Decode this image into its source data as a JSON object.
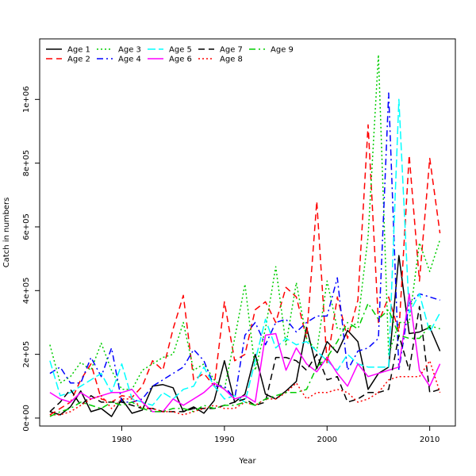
{
  "chart_data": {
    "type": "line",
    "title": "",
    "xlabel": "Year",
    "ylabel": "Catch in numbers",
    "xlim": [
      1972,
      2012.5
    ],
    "ylim": [
      -25000,
      1190000
    ],
    "x_ticks": [
      1980,
      1990,
      2000,
      2010
    ],
    "y_ticks": [
      0,
      200000,
      400000,
      600000,
      800000,
      1000000
    ],
    "y_tick_labels": [
      "0e+00",
      "2e+05",
      "4e+05",
      "6e+05",
      "8e+05",
      "1e+06"
    ],
    "legend_position": "top-left",
    "grid": false,
    "x": [
      1973,
      1974,
      1975,
      1976,
      1977,
      1978,
      1979,
      1980,
      1981,
      1982,
      1983,
      1984,
      1985,
      1986,
      1987,
      1988,
      1989,
      1990,
      1991,
      1992,
      1993,
      1994,
      1995,
      1996,
      1997,
      1998,
      1999,
      2000,
      2001,
      2002,
      2003,
      2004,
      2005,
      2006,
      2007,
      2008,
      2009,
      2010,
      2011
    ],
    "series": [
      {
        "name": "Age 1",
        "color": "#000000",
        "dash": "",
        "values": [
          20000,
          10000,
          35000,
          85000,
          20000,
          30000,
          5000,
          60000,
          15000,
          25000,
          100000,
          105000,
          95000,
          20000,
          35000,
          15000,
          55000,
          180000,
          50000,
          75000,
          200000,
          75000,
          60000,
          85000,
          115000,
          285000,
          155000,
          240000,
          205000,
          275000,
          240000,
          90000,
          140000,
          160000,
          510000,
          265000,
          270000,
          285000,
          210000
        ]
      },
      {
        "name": "Age 2",
        "color": "#ff0000",
        "dash": "8,5",
        "values": [
          10000,
          30000,
          50000,
          120000,
          170000,
          60000,
          50000,
          70000,
          65000,
          100000,
          180000,
          150000,
          280000,
          385000,
          120000,
          140000,
          100000,
          365000,
          180000,
          200000,
          340000,
          365000,
          300000,
          410000,
          380000,
          250000,
          680000,
          170000,
          380000,
          250000,
          370000,
          920000,
          300000,
          380000,
          270000,
          825000,
          430000,
          815000,
          580000
        ]
      },
      {
        "name": "Age 3",
        "color": "#00cd00",
        "dash": "2,3",
        "values": [
          230000,
          110000,
          130000,
          175000,
          150000,
          235000,
          150000,
          90000,
          90000,
          150000,
          170000,
          190000,
          200000,
          300000,
          150000,
          170000,
          120000,
          90000,
          250000,
          420000,
          150000,
          280000,
          475000,
          230000,
          425000,
          250000,
          210000,
          430000,
          280000,
          280000,
          300000,
          570000,
          1140000,
          200000,
          300000,
          300000,
          550000,
          460000,
          560000
        ]
      },
      {
        "name": "Age 4",
        "color": "#0000ff",
        "dash": "8,4,2,4",
        "values": [
          140000,
          160000,
          110000,
          110000,
          190000,
          130000,
          220000,
          50000,
          50000,
          60000,
          100000,
          120000,
          140000,
          160000,
          215000,
          180000,
          100000,
          100000,
          60000,
          260000,
          300000,
          230000,
          300000,
          310000,
          270000,
          300000,
          320000,
          320000,
          440000,
          150000,
          210000,
          220000,
          250000,
          1020000,
          150000,
          360000,
          390000,
          380000,
          370000
        ]
      },
      {
        "name": "Age 5",
        "color": "#00ffff",
        "dash": "10,4",
        "values": [
          180000,
          70000,
          80000,
          100000,
          120000,
          140000,
          80000,
          170000,
          60000,
          50000,
          40000,
          80000,
          60000,
          90000,
          100000,
          160000,
          100000,
          60000,
          70000,
          50000,
          180000,
          310000,
          220000,
          250000,
          230000,
          240000,
          210000,
          180000,
          150000,
          200000,
          170000,
          160000,
          160000,
          160000,
          1000000,
          330000,
          390000,
          270000,
          330000
        ]
      },
      {
        "name": "Age 6",
        "color": "#ff00ff",
        "dash": "",
        "values": [
          80000,
          60000,
          50000,
          80000,
          60000,
          70000,
          80000,
          80000,
          90000,
          50000,
          20000,
          20000,
          60000,
          40000,
          60000,
          80000,
          110000,
          90000,
          60000,
          70000,
          50000,
          260000,
          265000,
          150000,
          220000,
          170000,
          145000,
          190000,
          140000,
          100000,
          170000,
          130000,
          140000,
          150000,
          160000,
          390000,
          150000,
          100000,
          170000
        ]
      },
      {
        "name": "Age 7",
        "color": "#000000",
        "dash": "8,5",
        "values": [
          20000,
          50000,
          90000,
          40000,
          70000,
          50000,
          50000,
          50000,
          40000,
          30000,
          30000,
          20000,
          20000,
          20000,
          30000,
          30000,
          30000,
          40000,
          50000,
          60000,
          40000,
          50000,
          190000,
          190000,
          180000,
          150000,
          200000,
          120000,
          130000,
          50000,
          60000,
          80000,
          80000,
          90000,
          260000,
          150000,
          350000,
          80000,
          90000
        ]
      },
      {
        "name": "Age 8",
        "color": "#ff0000",
        "dash": "2,3",
        "values": [
          10000,
          10000,
          20000,
          40000,
          60000,
          70000,
          30000,
          60000,
          60000,
          30000,
          30000,
          20000,
          20000,
          10000,
          20000,
          30000,
          40000,
          30000,
          30000,
          50000,
          40000,
          60000,
          60000,
          80000,
          110000,
          60000,
          80000,
          80000,
          90000,
          80000,
          50000,
          60000,
          80000,
          120000,
          130000,
          130000,
          130000,
          180000,
          80000
        ]
      },
      {
        "name": "Age 9",
        "color": "#00cd00",
        "dash": "8,4,2,4",
        "values": [
          5000,
          20000,
          30000,
          50000,
          40000,
          30000,
          50000,
          40000,
          50000,
          30000,
          20000,
          20000,
          30000,
          30000,
          20000,
          40000,
          30000,
          40000,
          40000,
          50000,
          40000,
          60000,
          70000,
          80000,
          80000,
          90000,
          160000,
          190000,
          240000,
          300000,
          280000,
          360000,
          310000,
          340000,
          260000,
          250000,
          250000,
          290000,
          280000
        ]
      }
    ]
  }
}
